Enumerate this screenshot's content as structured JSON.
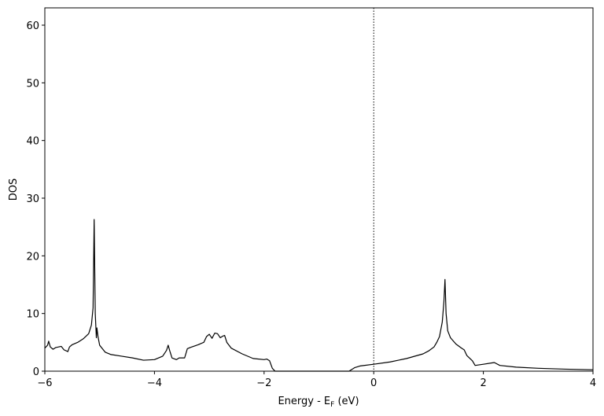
{
  "chart_data": {
    "type": "line",
    "xlabel": [
      "Energy - E",
      "F",
      " (eV)"
    ],
    "ylabel": "DOS",
    "xlim": [
      -6,
      4
    ],
    "ylim": [
      0,
      63
    ],
    "xticks": [
      {
        "value": -6,
        "label": "−6"
      },
      {
        "value": -4,
        "label": "−4"
      },
      {
        "value": -2,
        "label": "−2"
      },
      0,
      2,
      4
    ],
    "yticks": [
      0,
      10,
      20,
      30,
      40,
      50,
      60
    ],
    "vline": 0,
    "series": [
      {
        "color": "#000000",
        "x": [
          -6,
          -5.95,
          -5.93,
          -5.9,
          -5.85,
          -5.8,
          -5.7,
          -5.65,
          -5.58,
          -5.55,
          -5.5,
          -5.4,
          -5.3,
          -5.2,
          -5.15,
          -5.12,
          -5.1,
          -5.08,
          -5.06,
          -5.05,
          -5.03,
          -5.0,
          -4.9,
          -4.8,
          -4.6,
          -4.4,
          -4.2,
          -4.0,
          -3.85,
          -3.78,
          -3.75,
          -3.72,
          -3.68,
          -3.6,
          -3.55,
          -3.45,
          -3.4,
          -3.35,
          -3.2,
          -3.1,
          -3.05,
          -3.0,
          -2.95,
          -2.9,
          -2.85,
          -2.8,
          -2.75,
          -2.72,
          -2.68,
          -2.6,
          -2.4,
          -2.2,
          -2.0,
          -1.95,
          -1.9,
          -1.85,
          -1.8,
          -0.45,
          -0.35,
          -0.25,
          0,
          0.3,
          0.6,
          0.9,
          1.0,
          1.1,
          1.15,
          1.2,
          1.25,
          1.28,
          1.3,
          1.32,
          1.35,
          1.4,
          1.5,
          1.6,
          1.65,
          1.7,
          1.8,
          1.85,
          2.0,
          2.2,
          2.3,
          2.6,
          3.0,
          3.5,
          4.0
        ],
        "values": [
          4,
          4.5,
          5.2,
          4.2,
          3.8,
          4.1,
          4.3,
          3.7,
          3.4,
          4.2,
          4.6,
          5.0,
          5.6,
          6.5,
          8,
          11,
          26.3,
          10,
          5.8,
          7.5,
          6,
          4.5,
          3.3,
          2.9,
          2.6,
          2.3,
          1.9,
          2.0,
          2.6,
          3.6,
          4.5,
          3.5,
          2.3,
          2.0,
          2.3,
          2.3,
          3.9,
          4.1,
          4.6,
          5.0,
          6.0,
          6.4,
          5.7,
          6.6,
          6.5,
          5.8,
          6.1,
          6.2,
          5.0,
          4.0,
          3.0,
          2.2,
          2.0,
          2.1,
          1.8,
          0.5,
          0,
          0,
          0.6,
          0.9,
          1.2,
          1.6,
          2.2,
          3.0,
          3.5,
          4.2,
          5,
          6,
          8.5,
          12,
          15.9,
          10,
          7,
          5.8,
          4.7,
          4.0,
          3.7,
          2.7,
          1.8,
          1.0,
          1.2,
          1.5,
          1.0,
          0.7,
          0.5,
          0.35,
          0.25
        ]
      }
    ]
  }
}
